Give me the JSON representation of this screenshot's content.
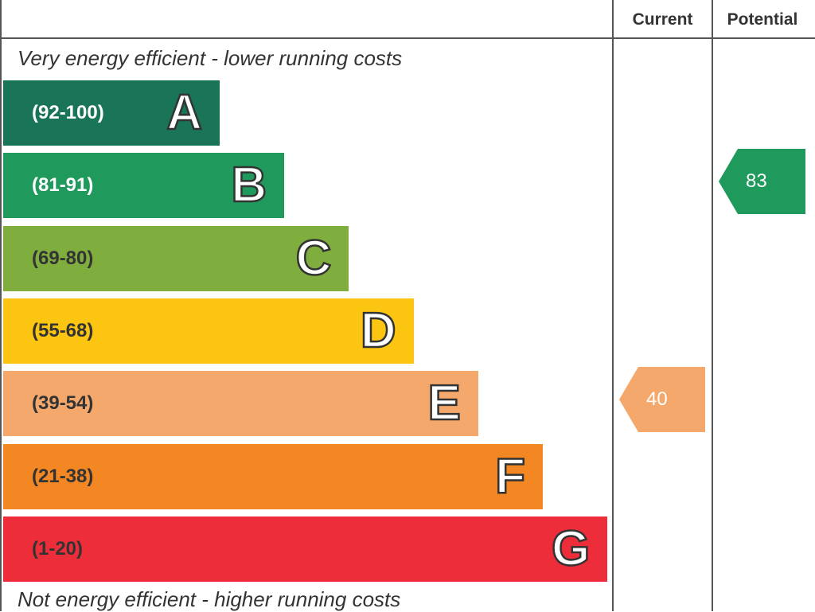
{
  "header": {
    "current_label": "Current",
    "potential_label": "Potential"
  },
  "captions": {
    "top": "Very energy efficient - lower running costs",
    "bottom": "Not energy efficient - higher running costs"
  },
  "chart_data": {
    "type": "bar",
    "bands": [
      {
        "letter": "A",
        "range": "(92-100)",
        "color": "#1a7458",
        "range_color": "#ffffff"
      },
      {
        "letter": "B",
        "range": "(81-91)",
        "color": "#1f9a5c",
        "range_color": "#ffffff"
      },
      {
        "letter": "C",
        "range": "(69-80)",
        "color": "#7fae3f",
        "range_color": "#333333"
      },
      {
        "letter": "D",
        "range": "(55-68)",
        "color": "#fbc512",
        "range_color": "#333333"
      },
      {
        "letter": "E",
        "range": "(39-54)",
        "color": "#f5a86b",
        "range_color": "#333333"
      },
      {
        "letter": "F",
        "range": "(21-38)",
        "color": "#f28724",
        "range_color": "#333333"
      },
      {
        "letter": "G",
        "range": "(1-20)",
        "color": "#ee2d3a",
        "range_color": "#333333"
      }
    ],
    "ratings": [
      {
        "column": "current",
        "value": 40,
        "band": "E",
        "color": "#f5a86b"
      },
      {
        "column": "potential",
        "value": 83,
        "band": "B",
        "color": "#1f9a5c"
      }
    ]
  }
}
